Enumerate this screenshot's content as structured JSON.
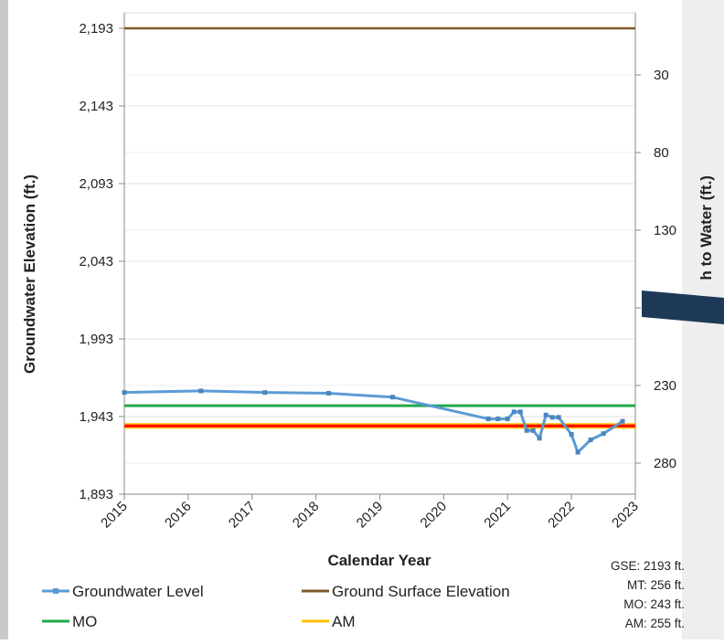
{
  "chart_data": {
    "type": "line",
    "xlabel": "Calendar Year",
    "ylabel": "Groundwater Elevation (ft.)",
    "y2label": "Depth to Water (ft.)",
    "y2label_visible": "De     h to Water (ft.)",
    "x_ticks": [
      "2015",
      "2016",
      "2017",
      "2018",
      "2019",
      "2020",
      "2021",
      "2022",
      "2023"
    ],
    "xlim": [
      2015,
      2023
    ],
    "ylim": [
      1893,
      2203
    ],
    "y_ticks": [
      "2,193",
      "2,143",
      "2,093",
      "2,043",
      "1,993",
      "1,943",
      "1,893"
    ],
    "y_tick_values": [
      2193,
      2143,
      2093,
      2043,
      1993,
      1943,
      1893
    ],
    "y2_ticks": [
      "30",
      "80",
      "130",
      "230",
      "280"
    ],
    "y2_tick_values": [
      30,
      80,
      130,
      230,
      280
    ],
    "grid": true,
    "series": [
      {
        "name": "Groundwater Level",
        "color": "#5b9bd5",
        "x": [
          2015.0,
          2016.2,
          2017.2,
          2018.2,
          2019.2,
          2020.7,
          2020.85,
          2021.0,
          2021.1,
          2021.2,
          2021.3,
          2021.4,
          2021.5,
          2021.6,
          2021.7,
          2021.8,
          2022.0,
          2022.1,
          2022.3,
          2022.5,
          2022.8
        ],
        "y": [
          1958.5,
          1959.5,
          1958.5,
          1958.0,
          1955.5,
          1941.5,
          1941.5,
          1941.5,
          1946.0,
          1946.0,
          1934.0,
          1934.0,
          1929.0,
          1944.0,
          1942.5,
          1942.5,
          1931.5,
          1920.0,
          1928.0,
          1932.0,
          1940.0
        ]
      },
      {
        "name": "Ground Surface Elevation",
        "color": "#7f5a2e",
        "x": [
          2015,
          2023
        ],
        "y": [
          2193,
          2193
        ]
      },
      {
        "name": "MO",
        "color": "#21a84b",
        "x": [
          2015,
          2023
        ],
        "y": [
          1950,
          1950
        ]
      },
      {
        "name": "AM",
        "color": "#ffc000",
        "x": [
          2015,
          2023
        ],
        "y": [
          1937,
          1937
        ]
      },
      {
        "name": "MT",
        "color": "#ff0000",
        "x": [
          2015,
          2023
        ],
        "y": [
          1937,
          1937
        ]
      }
    ],
    "legend": {
      "placement": "bottom",
      "items": [
        {
          "label": "Groundwater Level",
          "color": "#5b9bd5",
          "marker": true
        },
        {
          "label": "Ground Surface Elevation",
          "color": "#7f5a2e",
          "marker": false
        },
        {
          "label": "MO",
          "color": "#21a84b",
          "marker": false
        },
        {
          "label": "AM",
          "color": "#ffc000",
          "marker": false
        }
      ]
    },
    "notes": [
      "GSE: 2193 ft.",
      "MT: 256 ft.",
      "MO: 243 ft.",
      "AM: 255 ft."
    ]
  }
}
